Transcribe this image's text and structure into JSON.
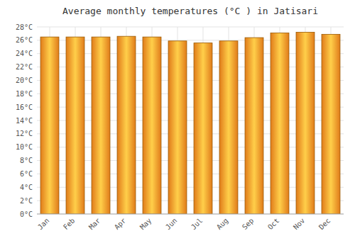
{
  "chart_data": {
    "type": "bar",
    "title": "Average monthly temperatures (°C ) in Jatisari",
    "categories": [
      "Jan",
      "Feb",
      "Mar",
      "Apr",
      "May",
      "Jun",
      "Jul",
      "Aug",
      "Sep",
      "Oct",
      "Nov",
      "Dec"
    ],
    "values": [
      26.5,
      26.5,
      26.5,
      26.6,
      26.5,
      25.9,
      25.6,
      25.9,
      26.4,
      27.1,
      27.2,
      26.9
    ],
    "ylim": [
      0,
      28
    ],
    "yticks": [
      {
        "value": 0,
        "label": "0°C"
      },
      {
        "value": 2,
        "label": "2°C"
      },
      {
        "value": 4,
        "label": "4°C"
      },
      {
        "value": 6,
        "label": "6°C"
      },
      {
        "value": 8,
        "label": "8°C"
      },
      {
        "value": 10,
        "label": "10°C"
      },
      {
        "value": 12,
        "label": "12°C"
      },
      {
        "value": 14,
        "label": "14°C"
      },
      {
        "value": 16,
        "label": "16°C"
      },
      {
        "value": 18,
        "label": "18°C"
      },
      {
        "value": 20,
        "label": "20°C"
      },
      {
        "value": 22,
        "label": "22°C"
      },
      {
        "value": 24,
        "label": "24°C"
      },
      {
        "value": 26,
        "label": "26°C"
      },
      {
        "value": 28,
        "label": "28°C"
      }
    ],
    "grid": true
  }
}
